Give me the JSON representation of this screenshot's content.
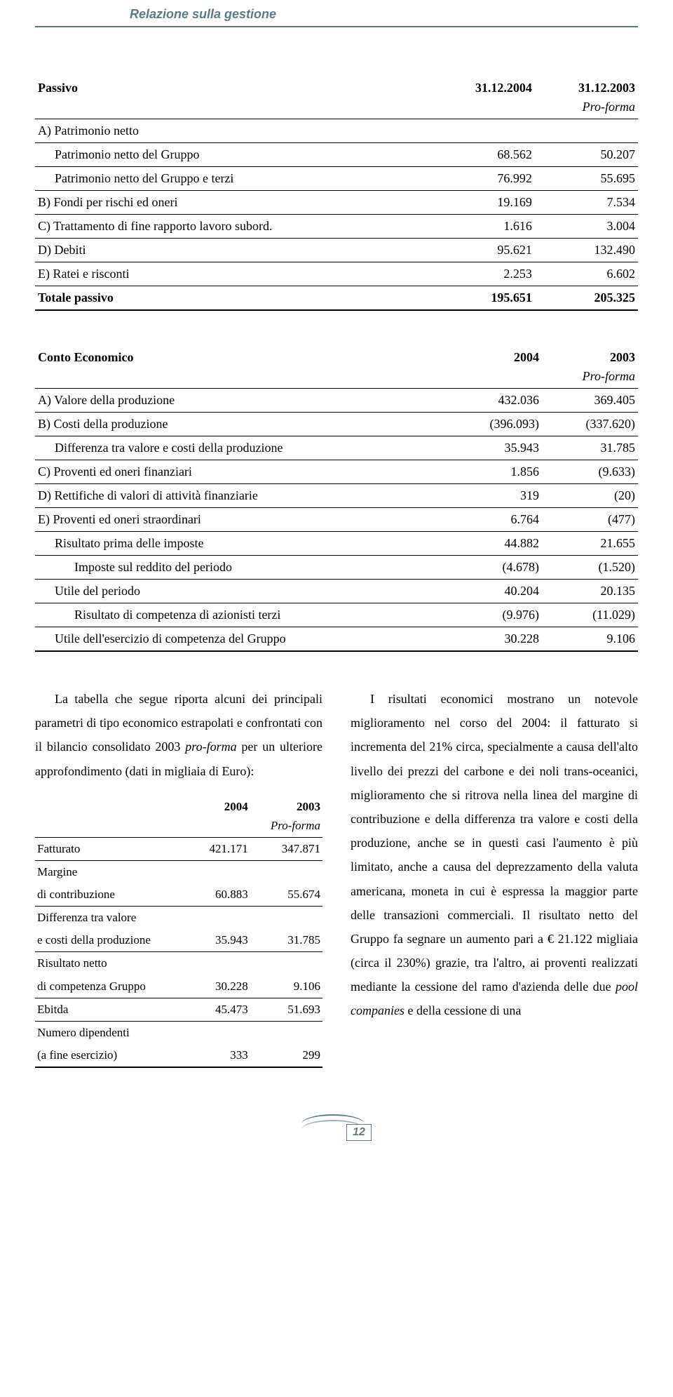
{
  "header": {
    "title": "Relazione sulla gestione"
  },
  "table_passivo": {
    "header": {
      "label": "Passivo",
      "col1": "31.12.2004",
      "col2": "31.12.2003",
      "sub2": "Pro-forma"
    },
    "rows": [
      {
        "label": "A) Patrimonio netto",
        "v1": "",
        "v2": "",
        "section": true
      },
      {
        "label": "Patrimonio netto del Gruppo",
        "v1": "68.562",
        "v2": "50.207",
        "indent": 1
      },
      {
        "label": "Patrimonio netto del Gruppo e terzi",
        "v1": "76.992",
        "v2": "55.695",
        "indent": 1
      },
      {
        "label": "B) Fondi per rischi ed oneri",
        "v1": "19.169",
        "v2": "7.534"
      },
      {
        "label": "C) Trattamento di fine rapporto lavoro subord.",
        "v1": "1.616",
        "v2": "3.004"
      },
      {
        "label": "D) Debiti",
        "v1": "95.621",
        "v2": "132.490"
      },
      {
        "label": "E) Ratei e risconti",
        "v1": "2.253",
        "v2": "6.602"
      },
      {
        "label": "Totale passivo",
        "v1": "195.651",
        "v2": "205.325",
        "bold": true,
        "thick": true
      }
    ]
  },
  "table_conto": {
    "header": {
      "label": "Conto Economico",
      "col1": "2004",
      "col2": "2003",
      "sub2": "Pro-forma"
    },
    "rows": [
      {
        "label": "A) Valore della produzione",
        "v1": "432.036",
        "v2": "369.405"
      },
      {
        "label": "B) Costi della produzione",
        "v1": "(396.093)",
        "v2": "(337.620)"
      },
      {
        "label": "Differenza tra valore e costi della produzione",
        "v1": "35.943",
        "v2": "31.785",
        "indent": 1
      },
      {
        "label": "C) Proventi ed oneri finanziari",
        "v1": "1.856",
        "v2": "(9.633)"
      },
      {
        "label": "D) Rettifiche di valori di attività finanziarie",
        "v1": "319",
        "v2": "(20)"
      },
      {
        "label": "E) Proventi ed oneri straordinari",
        "v1": "6.764",
        "v2": "(477)"
      },
      {
        "label": "Risultato prima delle imposte",
        "v1": "44.882",
        "v2": "21.655",
        "indent": 1
      },
      {
        "label": "Imposte sul reddito del periodo",
        "v1": "(4.678)",
        "v2": "(1.520)",
        "indent": 2
      },
      {
        "label": "Utile del periodo",
        "v1": "40.204",
        "v2": "20.135",
        "indent": 1
      },
      {
        "label": "Risultato di competenza di azionisti terzi",
        "v1": "(9.976)",
        "v2": "(11.029)",
        "indent": 2
      },
      {
        "label": "Utile dell'esercizio di competenza del Gruppo",
        "v1": "30.228",
        "v2": "9.106",
        "indent": 1,
        "thick": true
      }
    ]
  },
  "para_left": "La tabella che segue riporta alcuni dei principali parametri di tipo economico estrapolati e confrontati con il bilancio consolidato 2003 pro-forma per un ulteriore approfondimento (dati in migliaia di Euro):",
  "small_table": {
    "header": {
      "col1": "2004",
      "col2": "2003",
      "sub2": "Pro-forma"
    },
    "rows": [
      {
        "label": "Fatturato",
        "v1": "421.171",
        "v2": "347.871"
      },
      {
        "label_lines": [
          "Margine",
          "di contribuzione"
        ],
        "v1": "60.883",
        "v2": "55.674"
      },
      {
        "label_lines": [
          "Differenza tra valore",
          "e costi della produzione"
        ],
        "v1": "35.943",
        "v2": "31.785"
      },
      {
        "label_lines": [
          "Risultato netto",
          "di competenza Gruppo"
        ],
        "v1": "30.228",
        "v2": "9.106"
      },
      {
        "label": "Ebitda",
        "v1": "45.473",
        "v2": "51.693"
      },
      {
        "label_lines": [
          "Numero dipendenti",
          "(a fine esercizio)"
        ],
        "v1": "333",
        "v2": "299",
        "thick": true
      }
    ]
  },
  "para_right": "I risultati economici mostrano un notevole miglioramento nel corso del 2004: il fatturato si incrementa del 21% circa, specialmente a causa dell'alto livello dei prezzi del carbone e dei noli trans-oceanici, miglioramento che si ritrova nella linea del margine di contribuzione e della differenza tra valore e costi della produzione, anche se in questi casi l'aumento è più limitato, anche a causa del deprezzamento della valuta americana, moneta in cui è espressa la maggior parte delle transazioni commerciali. Il risultato netto del Gruppo fa segnare un aumento pari a € 21.122 migliaia (circa il 230%) grazie, tra l'altro, ai proventi realizzati mediante la cessione del ramo d'azienda delle due pool companies e della cessione di una",
  "page_number": "12",
  "colors": {
    "accent": "#5a7a8a",
    "text": "#000000",
    "background": "#ffffff"
  }
}
